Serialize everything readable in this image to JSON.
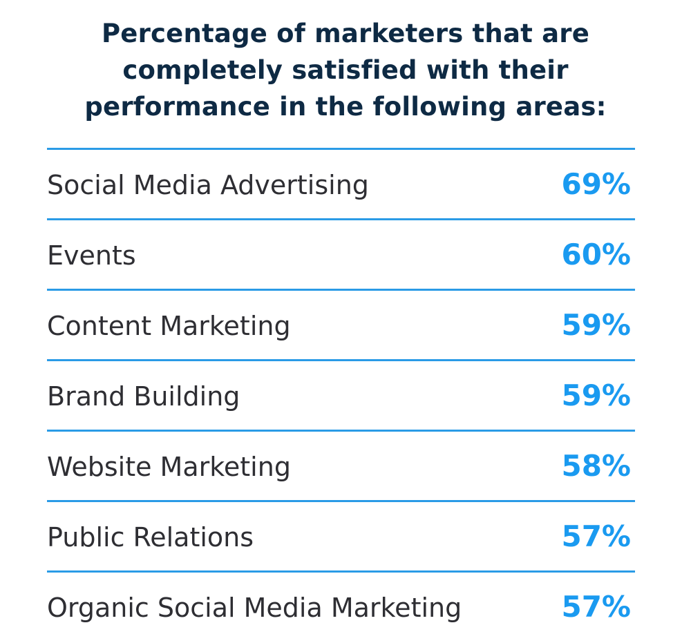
{
  "chart_data": {
    "type": "table",
    "title": "Percentage of marketers that are completely satisfied with their performance in the following areas:",
    "title_lines": [
      "Percentage of marketers that are",
      "completely satisfied with their",
      "performance in the following areas:"
    ],
    "rows": [
      {
        "label": "Social Media Advertising",
        "value": "69%"
      },
      {
        "label": "Events",
        "value": "60%"
      },
      {
        "label": "Content Marketing",
        "value": "59%"
      },
      {
        "label": "Brand Building",
        "value": "59%"
      },
      {
        "label": "Website Marketing",
        "value": "58%"
      },
      {
        "label": "Public Relations",
        "value": "57%"
      },
      {
        "label": "Organic Social Media Marketing",
        "value": "57%"
      }
    ],
    "colors": {
      "title": "#0e2a44",
      "label": "#2e2e33",
      "value": "#1a9af0",
      "divider": "#2a9be6"
    }
  }
}
